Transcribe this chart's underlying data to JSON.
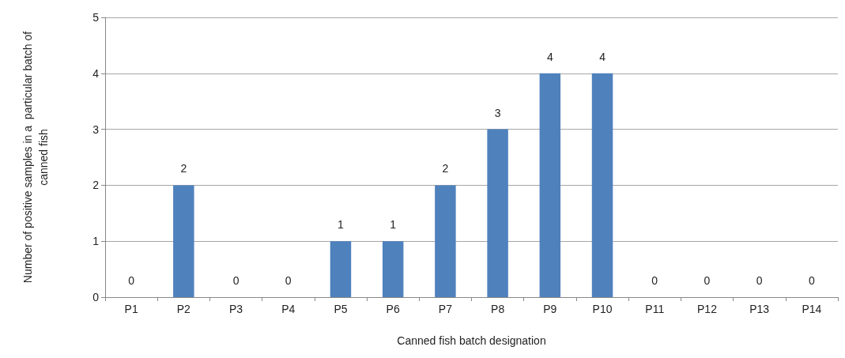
{
  "chart_data": {
    "type": "bar",
    "xlabel": "Canned fish batch designation",
    "ylabel": "Number of positive samples in a  particular batch of canned fish",
    "categories": [
      "P1",
      "P2",
      "P3",
      "P4",
      "P5",
      "P6",
      "P7",
      "P8",
      "P9",
      "P10",
      "P11",
      "P12",
      "P13",
      "P14"
    ],
    "values": [
      0,
      2,
      0,
      0,
      1,
      1,
      2,
      3,
      4,
      4,
      0,
      0,
      0,
      0
    ],
    "color": "#4f81bd",
    "ylim": [
      0,
      5
    ],
    "yticks": [
      0,
      1,
      2,
      3,
      4,
      5
    ],
    "grid": "y",
    "data_labels": true
  }
}
